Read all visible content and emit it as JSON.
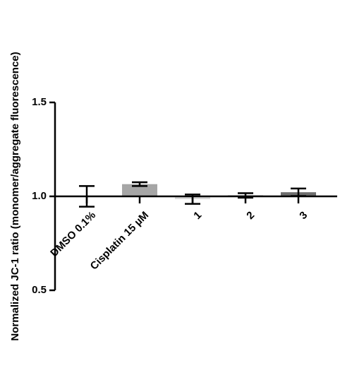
{
  "chart_data": {
    "type": "bar",
    "y_label": "Normalized JC-1 ratio (monomer/aggregate fluorescence)",
    "categories": [
      "DMSO 0.1%",
      "Cisplatin 15 µM",
      "1",
      "2",
      "3"
    ],
    "values": [
      1.0,
      1.065,
      0.985,
      1.005,
      1.022
    ],
    "errors": [
      0.055,
      0.01,
      0.025,
      0.012,
      0.02
    ],
    "colors": [
      "#000000",
      "#a6a6a6",
      "#d9d9d9",
      "#595959",
      "#6e6e6e"
    ],
    "baseline": 1,
    "ylim": [
      0.5,
      1.5
    ],
    "yticks": [
      0.5,
      {
        "value": 1,
        "label": "1.0"
      },
      1.5
    ]
  }
}
